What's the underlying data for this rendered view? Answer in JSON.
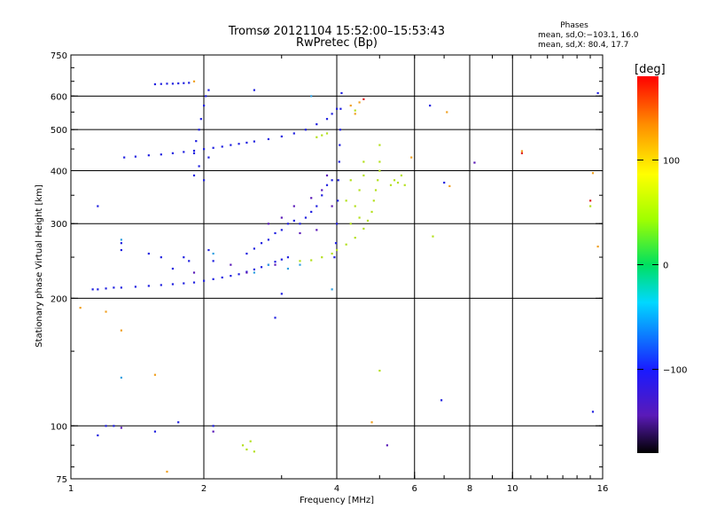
{
  "chart_data": {
    "type": "scatter",
    "title": "Tromsø 20121104 15:52:00–15:53:43",
    "subtitle": "RwPretec (Bp)",
    "xlabel": "Frequency [MHz]",
    "ylabel": "Stationary phase Virtual Height [km]",
    "x_scale": "log",
    "y_scale": "log",
    "xlim": [
      1,
      16
    ],
    "ylim": [
      75,
      750
    ],
    "x_ticks": [
      1,
      2,
      4,
      6,
      8,
      10,
      16
    ],
    "x_tick_labels": [
      "1",
      "2",
      "4",
      "6",
      "8",
      "10",
      "16"
    ],
    "y_ticks": [
      75,
      100,
      200,
      300,
      400,
      500,
      600,
      750
    ],
    "y_tick_labels": [
      "75",
      "100",
      "200",
      "300",
      "400",
      "500",
      "600",
      "750"
    ],
    "grid": true,
    "phases_info": {
      "title": "Phases",
      "line1": "mean, sd,O:−103.1, 16.0",
      "line2": "mean, sd,X:  80.4, 17.7"
    },
    "colorbar": {
      "label": "[deg]",
      "ticks": [
        100,
        0,
        -100
      ],
      "tick_labels": [
        "100",
        "0",
        "−100"
      ],
      "range": [
        -180,
        180
      ]
    },
    "series": [
      {
        "color": "#2020e0",
        "points": [
          [
            1.12,
            210
          ],
          [
            1.15,
            210
          ],
          [
            1.2,
            211
          ],
          [
            1.25,
            212
          ],
          [
            1.3,
            212
          ],
          [
            1.4,
            213
          ],
          [
            1.5,
            214
          ],
          [
            1.6,
            215
          ],
          [
            1.7,
            216
          ],
          [
            1.8,
            217
          ],
          [
            1.9,
            218
          ],
          [
            2.0,
            220
          ],
          [
            2.1,
            222
          ],
          [
            2.2,
            224
          ],
          [
            2.3,
            226
          ],
          [
            2.4,
            228
          ],
          [
            2.5,
            231
          ],
          [
            2.6,
            234
          ],
          [
            2.7,
            237
          ],
          [
            2.8,
            240
          ],
          [
            2.9,
            244
          ],
          [
            3.0,
            247
          ],
          [
            3.1,
            250
          ],
          [
            1.32,
            430
          ],
          [
            1.4,
            432
          ],
          [
            1.5,
            435
          ],
          [
            1.6,
            437
          ],
          [
            1.7,
            440
          ],
          [
            1.8,
            443
          ],
          [
            1.9,
            446
          ],
          [
            2.0,
            450
          ],
          [
            2.1,
            453
          ],
          [
            2.2,
            456
          ],
          [
            2.3,
            460
          ],
          [
            2.4,
            463
          ],
          [
            2.5,
            466
          ],
          [
            2.6,
            469
          ],
          [
            2.8,
            475
          ],
          [
            3.0,
            482
          ],
          [
            3.2,
            490
          ],
          [
            3.4,
            500
          ],
          [
            3.6,
            515
          ],
          [
            3.8,
            530
          ],
          [
            3.9,
            545
          ],
          [
            4.0,
            560
          ],
          [
            1.55,
            640
          ],
          [
            1.6,
            641
          ],
          [
            1.65,
            642
          ],
          [
            1.7,
            642
          ],
          [
            1.75,
            643
          ],
          [
            1.8,
            644
          ],
          [
            1.85,
            645
          ],
          [
            1.9,
            440
          ],
          [
            1.92,
            470
          ],
          [
            1.95,
            500
          ],
          [
            1.97,
            530
          ],
          [
            2.0,
            570
          ],
          [
            2.02,
            600
          ],
          [
            2.05,
            620
          ],
          [
            1.9,
            390
          ],
          [
            1.95,
            410
          ],
          [
            2.0,
            380
          ],
          [
            2.05,
            430
          ],
          [
            4.0,
            300
          ],
          [
            4.02,
            340
          ],
          [
            4.03,
            380
          ],
          [
            4.05,
            420
          ],
          [
            4.06,
            460
          ],
          [
            4.07,
            500
          ],
          [
            4.08,
            560
          ],
          [
            4.1,
            610
          ],
          [
            3.98,
            270
          ],
          [
            3.95,
            250
          ],
          [
            1.15,
            330
          ],
          [
            1.3,
            270
          ],
          [
            1.3,
            260
          ],
          [
            1.5,
            255
          ],
          [
            1.6,
            250
          ],
          [
            1.7,
            235
          ],
          [
            1.8,
            250
          ],
          [
            1.85,
            245
          ],
          [
            2.05,
            260
          ],
          [
            2.1,
            245
          ],
          [
            2.5,
            255
          ],
          [
            2.6,
            262
          ],
          [
            2.7,
            270
          ],
          [
            2.8,
            275
          ],
          [
            2.9,
            285
          ],
          [
            3.0,
            290
          ],
          [
            3.1,
            300
          ],
          [
            3.2,
            305
          ],
          [
            3.3,
            300
          ],
          [
            3.4,
            310
          ],
          [
            3.5,
            320
          ],
          [
            3.6,
            330
          ],
          [
            3.7,
            350
          ],
          [
            3.8,
            370
          ],
          [
            3.9,
            380
          ],
          [
            2.6,
            620
          ],
          [
            1.15,
            95
          ],
          [
            1.2,
            100
          ],
          [
            1.25,
            100
          ],
          [
            1.55,
            97
          ],
          [
            1.75,
            102
          ],
          [
            2.1,
            100
          ],
          [
            6.5,
            570
          ],
          [
            7.0,
            375
          ],
          [
            15.2,
            108
          ],
          [
            15.6,
            610
          ],
          [
            2.9,
            180
          ],
          [
            3.0,
            205
          ],
          [
            6.9,
            115
          ]
        ]
      },
      {
        "color": "#5a1ab8",
        "points": [
          [
            2.8,
            300
          ],
          [
            3.0,
            310
          ],
          [
            3.2,
            330
          ],
          [
            3.5,
            345
          ],
          [
            3.7,
            360
          ],
          [
            3.8,
            390
          ],
          [
            3.9,
            330
          ],
          [
            3.6,
            290
          ],
          [
            3.3,
            285
          ],
          [
            2.9,
            240
          ],
          [
            2.5,
            230
          ],
          [
            2.3,
            240
          ],
          [
            1.9,
            230
          ],
          [
            8.2,
            418
          ],
          [
            5.2,
            90
          ],
          [
            1.3,
            99
          ],
          [
            2.1,
            97
          ]
        ]
      },
      {
        "color": "#30a0e0",
        "points": [
          [
            2.6,
            230
          ],
          [
            2.8,
            240
          ],
          [
            3.1,
            235
          ],
          [
            3.3,
            240
          ],
          [
            1.3,
            130
          ],
          [
            1.3,
            275
          ],
          [
            2.1,
            255
          ],
          [
            3.9,
            210
          ],
          [
            3.5,
            600
          ]
        ]
      },
      {
        "color": "#b4e01e",
        "points": [
          [
            3.3,
            245
          ],
          [
            3.5,
            246
          ],
          [
            3.7,
            250
          ],
          [
            3.9,
            255
          ],
          [
            4.0,
            260
          ],
          [
            4.2,
            268
          ],
          [
            4.4,
            278
          ],
          [
            4.6,
            292
          ],
          [
            4.7,
            305
          ],
          [
            4.8,
            320
          ],
          [
            4.85,
            340
          ],
          [
            4.9,
            360
          ],
          [
            4.95,
            380
          ],
          [
            5.0,
            400
          ],
          [
            5.0,
            420
          ],
          [
            5.0,
            460
          ],
          [
            4.3,
            300
          ],
          [
            4.4,
            330
          ],
          [
            4.5,
            360
          ],
          [
            4.6,
            390
          ],
          [
            4.5,
            310
          ],
          [
            4.2,
            340
          ],
          [
            4.3,
            380
          ],
          [
            4.6,
            420
          ],
          [
            5.3,
            370
          ],
          [
            5.4,
            380
          ],
          [
            5.5,
            375
          ],
          [
            5.6,
            390
          ],
          [
            5.7,
            370
          ],
          [
            3.6,
            480
          ],
          [
            3.7,
            485
          ],
          [
            3.8,
            490
          ],
          [
            2.45,
            90
          ],
          [
            2.5,
            88
          ],
          [
            2.55,
            92
          ],
          [
            2.6,
            87
          ],
          [
            4.4,
            555
          ],
          [
            5.0,
            135
          ],
          [
            6.6,
            280
          ],
          [
            15.0,
            330
          ]
        ]
      },
      {
        "color": "#f0a020",
        "points": [
          [
            4.5,
            580
          ],
          [
            4.3,
            570
          ],
          [
            4.4,
            545
          ],
          [
            7.2,
            368
          ],
          [
            10.5,
            445
          ],
          [
            15.2,
            395
          ],
          [
            15.6,
            265
          ],
          [
            1.05,
            190
          ],
          [
            1.2,
            186
          ],
          [
            1.3,
            168
          ],
          [
            1.55,
            132
          ],
          [
            1.65,
            78
          ],
          [
            4.8,
            102
          ],
          [
            7.1,
            550
          ],
          [
            1.9,
            650
          ],
          [
            5.9,
            430
          ]
        ]
      },
      {
        "color": "#e02020",
        "points": [
          [
            4.6,
            590
          ],
          [
            10.5,
            440
          ],
          [
            15.0,
            340
          ]
        ]
      }
    ]
  }
}
